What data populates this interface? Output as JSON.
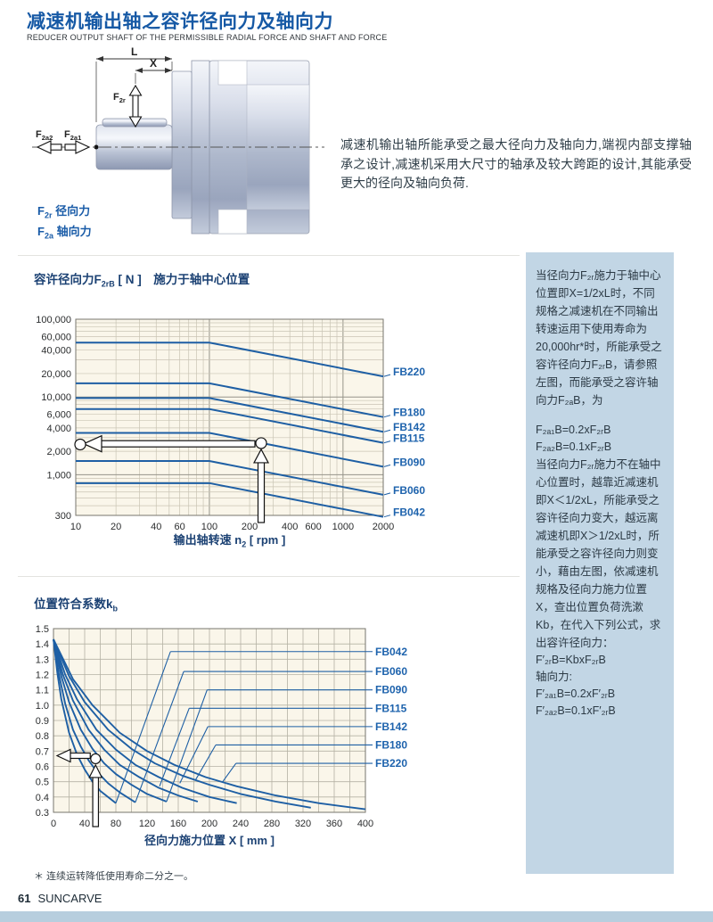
{
  "page": {
    "title": "减速机输出轴之容许径向力及轴向力",
    "subtitle": "REDUCER OUTPUT SHAFT OF THE PERMISSIBLE RADIAL FORCE AND SHAFT AND FORCE",
    "footnote": "＊ 连续运转降低使用寿命二分之一。",
    "footer_page": "61",
    "footer_brand": "SUNCARVE"
  },
  "diagram": {
    "dim_l": "L",
    "dim_x": "X",
    "f2r": {
      "main": "F",
      "sub": "2r"
    },
    "f2a2": {
      "main": "F",
      "sub": "2a2"
    },
    "f2a1": {
      "main": "F",
      "sub": "2a1"
    },
    "legend": [
      {
        "sym": "F",
        "sub": "2r",
        "label": " 径向力"
      },
      {
        "sym": "F",
        "sub": "2a",
        "label": " 轴向力"
      }
    ]
  },
  "intro_text": "减速机输出轴所能承受之最大径向力及轴向力,端视内部支撑轴承之设计,减速机采用大尺寸的轴承及较大跨距的设计,其能承受更大的径向及轴向负荷.",
  "sidebar": {
    "block1": {
      "text": "当径向力F₂ᵣ施力于轴中心位置即X=1/2xL时，不同规格之减速机在不同输出转速运用下使用寿命为20,000hr*时，所能承受之容许径向力F₂ᵣB，请参照左图，而能承受之容许轴向力F₂ₐB，为",
      "formulas": [
        "F₂ₐ₁B=0.2xF₂ᵣB",
        "F₂ₐ₂B=0.1xF₂ᵣB"
      ]
    },
    "block2": {
      "text": "当径向力F₂ᵣ施力不在轴中心位置时，越靠近减速机即X＜1/2xL，所能承受之容许径向力变大，越远离减速机即X＞1/2xL时，所能承受之容许径向力则变小，藉由左图，依减速机规格及径向力施力位置X，查出位置负荷洗漱Kb，在代入下列公式，求出容许径向力：",
      "lines": [
        "F′₂ᵣB=KbxF₂ᵣB",
        "轴向力:",
        "F′₂ₐ₁B=0.2xF′₂ᵣB",
        "F′₂ₐ₂B=0.1xF′₂ᵣB"
      ]
    }
  },
  "chart_data": [
    {
      "type": "line",
      "title_parts": {
        "pre": "容许径向力F",
        "sub": "2rB",
        "post": " [ N ]　施力于轴中心位置"
      },
      "xlabel_parts": {
        "pre": "输出轴转速 n",
        "sub": "2",
        "post": " [ rpm ]"
      },
      "x_scale": "log",
      "y_scale": "log",
      "xlim": [
        10,
        2000
      ],
      "ylim": [
        300,
        100000
      ],
      "x_ticks": [
        {
          "v": 10,
          "label": "10"
        },
        {
          "v": 20,
          "label": "20"
        },
        {
          "v": 40,
          "label": "40"
        },
        {
          "v": 60,
          "label": "60"
        },
        {
          "v": 100,
          "label": "100"
        },
        {
          "v": 200,
          "label": "200"
        },
        {
          "v": 400,
          "label": "400"
        },
        {
          "v": 600,
          "label": "600"
        },
        {
          "v": 1000,
          "label": "1000"
        },
        {
          "v": 2000,
          "label": "2000"
        }
      ],
      "y_ticks": [
        {
          "v": 100000,
          "label": "100,000"
        },
        {
          "v": 60000,
          "label": "60,000"
        },
        {
          "v": 40000,
          "label": "40,000"
        },
        {
          "v": 20000,
          "label": "20,000"
        },
        {
          "v": 10000,
          "label": "10,000"
        },
        {
          "v": 6000,
          "label": "6,000"
        },
        {
          "v": 4000,
          "label": "4,000"
        },
        {
          "v": 2000,
          "label": "2,000"
        },
        {
          "v": 1000,
          "label": "1,000"
        },
        {
          "v": 300,
          "label": "300"
        }
      ],
      "series": [
        {
          "name": "FB220",
          "points": [
            [
              10,
              50000
            ],
            [
              100,
              50000
            ],
            [
              2000,
              18400
            ]
          ]
        },
        {
          "name": "FB180",
          "points": [
            [
              10,
              15000
            ],
            [
              100,
              15000
            ],
            [
              2000,
              5520
            ]
          ]
        },
        {
          "name": "FB142",
          "points": [
            [
              10,
              9700
            ],
            [
              100,
              9700
            ],
            [
              2000,
              3570
            ]
          ]
        },
        {
          "name": "FB115",
          "points": [
            [
              10,
              7000
            ],
            [
              100,
              7000
            ],
            [
              2000,
              2575
            ]
          ]
        },
        {
          "name": "FB090",
          "points": [
            [
              10,
              3450
            ],
            [
              100,
              3450
            ],
            [
              2000,
              1270
            ]
          ]
        },
        {
          "name": "FB060",
          "points": [
            [
              10,
              1500
            ],
            [
              100,
              1500
            ],
            [
              2000,
              552
            ]
          ]
        },
        {
          "name": "FB042",
          "points": [
            [
              10,
              780
            ],
            [
              100,
              780
            ],
            [
              2000,
              287
            ]
          ]
        }
      ],
      "annotation": {
        "point_x": 244,
        "point_y": 2550,
        "readout_y": 2500,
        "axis_circle_y": 2450
      },
      "colors": {
        "line": "#1e5fa4",
        "bg": "#faf6ea",
        "grid_major": "#96948a",
        "grid_minor": "#c9c4b4",
        "frame": "#77756d",
        "tick_text": "#2b2d2e",
        "label": "#1e63ad"
      }
    },
    {
      "type": "line",
      "title_parts": {
        "pre": "位置符合系数k",
        "sub": "b",
        "post": ""
      },
      "xlabel_parts": {
        "pre": "径向力施力位置 X [ mm ]",
        "sub": "",
        "post": ""
      },
      "x_scale": "linear",
      "y_scale": "linear",
      "xlim": [
        0,
        400
      ],
      "ylim": [
        0.3,
        1.5
      ],
      "grid_step": {
        "x": 20,
        "y": 0.1
      },
      "x_ticks": [
        {
          "v": 0,
          "label": "0"
        },
        {
          "v": 40,
          "label": "40"
        },
        {
          "v": 80,
          "label": "80"
        },
        {
          "v": 120,
          "label": "120"
        },
        {
          "v": 160,
          "label": "160"
        },
        {
          "v": 200,
          "label": "200"
        },
        {
          "v": 240,
          "label": "240"
        },
        {
          "v": 280,
          "label": "280"
        },
        {
          "v": 320,
          "label": "320"
        },
        {
          "v": 360,
          "label": "360"
        },
        {
          "v": 400,
          "label": "400"
        }
      ],
      "y_ticks": [
        {
          "v": 1.5,
          "label": "1.5"
        },
        {
          "v": 1.4,
          "label": "1.4"
        },
        {
          "v": 1.3,
          "label": "1.3"
        },
        {
          "v": 1.2,
          "label": "1.2"
        },
        {
          "v": 1.1,
          "label": "1.1"
        },
        {
          "v": 1.0,
          "label": "1.0"
        },
        {
          "v": 0.9,
          "label": "0.9"
        },
        {
          "v": 0.8,
          "label": "0.8"
        },
        {
          "v": 0.7,
          "label": "0.7"
        },
        {
          "v": 0.6,
          "label": "0.6"
        },
        {
          "v": 0.5,
          "label": "0.5"
        },
        {
          "v": 0.4,
          "label": "0.4"
        },
        {
          "v": 0.3,
          "label": "0.3"
        }
      ],
      "series": [
        {
          "name": "FB042",
          "row": 1.35,
          "leader": [
            [
              80,
              0.36
            ],
            [
              150,
              1.35
            ]
          ],
          "points": [
            [
              0,
              1.43
            ],
            [
              5,
              1.21
            ],
            [
              10,
              1.04
            ],
            [
              20,
              0.82
            ],
            [
              30,
              0.68
            ],
            [
              40,
              0.58
            ],
            [
              50,
              0.5
            ],
            [
              60,
              0.44
            ],
            [
              70,
              0.4
            ],
            [
              80,
              0.36
            ]
          ]
        },
        {
          "name": "FB060",
          "row": 1.22,
          "leader": [
            [
              105,
              0.365
            ],
            [
              167,
              1.22
            ]
          ],
          "points": [
            [
              0,
              1.43
            ],
            [
              7,
              1.2
            ],
            [
              15,
              1.01
            ],
            [
              25,
              0.84
            ],
            [
              35,
              0.73
            ],
            [
              45,
              0.64
            ],
            [
              55,
              0.57
            ],
            [
              70,
              0.49
            ],
            [
              85,
              0.43
            ],
            [
              105,
              0.365
            ]
          ]
        },
        {
          "name": "FB090",
          "row": 1.1,
          "leader": [
            [
              145,
              0.37
            ],
            [
              197,
              1.1
            ]
          ],
          "points": [
            [
              0,
              1.43
            ],
            [
              10,
              1.19
            ],
            [
              20,
              1.02
            ],
            [
              35,
              0.84
            ],
            [
              50,
              0.715
            ],
            [
              65,
              0.62
            ],
            [
              80,
              0.55
            ],
            [
              100,
              0.48
            ],
            [
              120,
              0.42
            ],
            [
              145,
              0.37
            ]
          ]
        },
        {
          "name": "FB115",
          "row": 0.98,
          "leader": [
            [
              136,
              0.47
            ],
            [
              174,
              0.98
            ]
          ],
          "points": [
            [
              0,
              1.43
            ],
            [
              12,
              1.2
            ],
            [
              25,
              1.03
            ],
            [
              45,
              0.84
            ],
            [
              65,
              0.71
            ],
            [
              85,
              0.61
            ],
            [
              110,
              0.53
            ],
            [
              135,
              0.46
            ],
            [
              160,
              0.41
            ],
            [
              185,
              0.37
            ]
          ]
        },
        {
          "name": "FB142",
          "row": 0.86,
          "leader": [
            [
              162,
              0.49
            ],
            [
              198,
              0.86
            ]
          ],
          "points": [
            [
              0,
              1.43
            ],
            [
              15,
              1.2
            ],
            [
              30,
              1.04
            ],
            [
              55,
              0.84
            ],
            [
              80,
              0.71
            ],
            [
              105,
              0.61
            ],
            [
              135,
              0.53
            ],
            [
              165,
              0.46
            ],
            [
              200,
              0.4
            ],
            [
              235,
              0.36
            ]
          ]
        },
        {
          "name": "FB180",
          "row": 0.74,
          "leader": [
            [
              182,
              0.51
            ],
            [
              208,
              0.74
            ]
          ],
          "points": [
            [
              0,
              1.43
            ],
            [
              20,
              1.19
            ],
            [
              40,
              1.02
            ],
            [
              70,
              0.84
            ],
            [
              100,
              0.715
            ],
            [
              130,
              0.62
            ],
            [
              165,
              0.54
            ],
            [
              200,
              0.48
            ],
            [
              240,
              0.42
            ],
            [
              285,
              0.37
            ],
            [
              330,
              0.33
            ]
          ]
        },
        {
          "name": "FB220",
          "row": 0.62,
          "leader": [
            [
              217,
              0.5
            ],
            [
              234,
              0.62
            ]
          ],
          "points": [
            [
              0,
              1.43
            ],
            [
              25,
              1.17
            ],
            [
              50,
              1.0
            ],
            [
              85,
              0.82
            ],
            [
              120,
              0.7
            ],
            [
              155,
              0.61
            ],
            [
              195,
              0.53
            ],
            [
              235,
              0.47
            ],
            [
              285,
              0.41
            ],
            [
              340,
              0.36
            ],
            [
              400,
              0.32
            ]
          ]
        }
      ],
      "annotation": {
        "point_x": 54,
        "point_y": 0.65,
        "readout_y": 0.67
      },
      "colors": {
        "line": "#1e5fa4",
        "bg": "#faf6ea",
        "grid_major": "#a8a598",
        "grid_minor": "#b5b2a4",
        "frame": "#77756d",
        "tick_text": "#2b2d2e",
        "label": "#1e63ad"
      }
    }
  ]
}
